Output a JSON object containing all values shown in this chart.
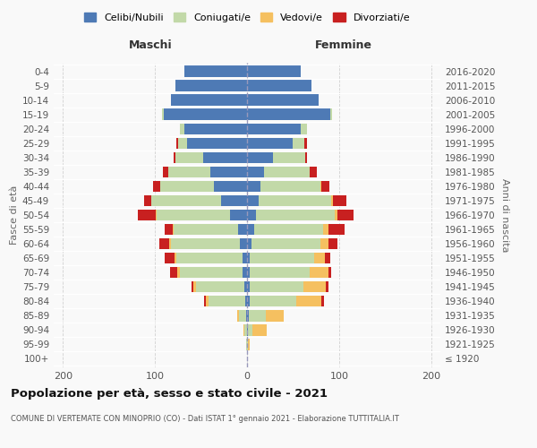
{
  "age_groups": [
    "100+",
    "95-99",
    "90-94",
    "85-89",
    "80-84",
    "75-79",
    "70-74",
    "65-69",
    "60-64",
    "55-59",
    "50-54",
    "45-49",
    "40-44",
    "35-39",
    "30-34",
    "25-29",
    "20-24",
    "15-19",
    "10-14",
    "5-9",
    "0-4"
  ],
  "birth_years": [
    "≤ 1920",
    "1921-1925",
    "1926-1930",
    "1931-1935",
    "1936-1940",
    "1941-1945",
    "1946-1950",
    "1951-1955",
    "1956-1960",
    "1961-1965",
    "1966-1970",
    "1971-1975",
    "1976-1980",
    "1981-1985",
    "1986-1990",
    "1991-1995",
    "1996-2000",
    "2001-2005",
    "2006-2010",
    "2011-2015",
    "2016-2020"
  ],
  "male_celibe": [
    0,
    0,
    0,
    1,
    2,
    3,
    5,
    5,
    8,
    10,
    18,
    28,
    36,
    40,
    48,
    65,
    68,
    90,
    83,
    78,
    68
  ],
  "male_coniugato": [
    0,
    1,
    3,
    8,
    40,
    52,
    68,
    72,
    75,
    70,
    80,
    76,
    58,
    46,
    30,
    10,
    5,
    2,
    0,
    0,
    0
  ],
  "male_vedovo": [
    0,
    0,
    1,
    2,
    3,
    3,
    3,
    2,
    2,
    1,
    1,
    0,
    0,
    0,
    0,
    0,
    0,
    0,
    0,
    0,
    0
  ],
  "male_divorziato": [
    0,
    0,
    0,
    0,
    2,
    2,
    8,
    10,
    10,
    8,
    20,
    8,
    8,
    5,
    2,
    2,
    0,
    0,
    0,
    0,
    0
  ],
  "female_nubile": [
    0,
    0,
    1,
    2,
    3,
    3,
    3,
    3,
    5,
    8,
    10,
    13,
    15,
    18,
    28,
    50,
    58,
    90,
    78,
    70,
    58
  ],
  "female_coniugata": [
    0,
    1,
    5,
    18,
    50,
    58,
    65,
    70,
    75,
    75,
    85,
    78,
    65,
    50,
    35,
    12,
    7,
    2,
    0,
    0,
    0
  ],
  "female_vedova": [
    0,
    2,
    15,
    20,
    28,
    25,
    20,
    12,
    8,
    5,
    3,
    2,
    1,
    0,
    0,
    0,
    0,
    0,
    0,
    0,
    0
  ],
  "female_divorziata": [
    0,
    0,
    0,
    0,
    3,
    2,
    3,
    5,
    10,
    18,
    18,
    15,
    8,
    8,
    2,
    3,
    0,
    0,
    0,
    0,
    0
  ],
  "col_celibe": "#4e7ab5",
  "col_coniugato": "#c2d9a8",
  "col_vedovo": "#f5c060",
  "col_divorziato": "#c82020",
  "xlim": 210,
  "title": "Popolazione per età, sesso e stato civile - 2021",
  "subtitle": "COMUNE DI VERTEMATE CON MINOPRIO (CO) - Dati ISTAT 1° gennaio 2021 - Elaborazione TUTTITALIA.IT",
  "label_maschi": "Maschi",
  "label_femmine": "Femmine",
  "ylabel_left": "Fasce di età",
  "ylabel_right": "Anni di nascita",
  "legend_labels": [
    "Celibi/Nubili",
    "Coniugati/e",
    "Vedovi/e",
    "Divorziati/e"
  ],
  "bg_color": "#f9f9f9",
  "grid_color": "#cccccc"
}
